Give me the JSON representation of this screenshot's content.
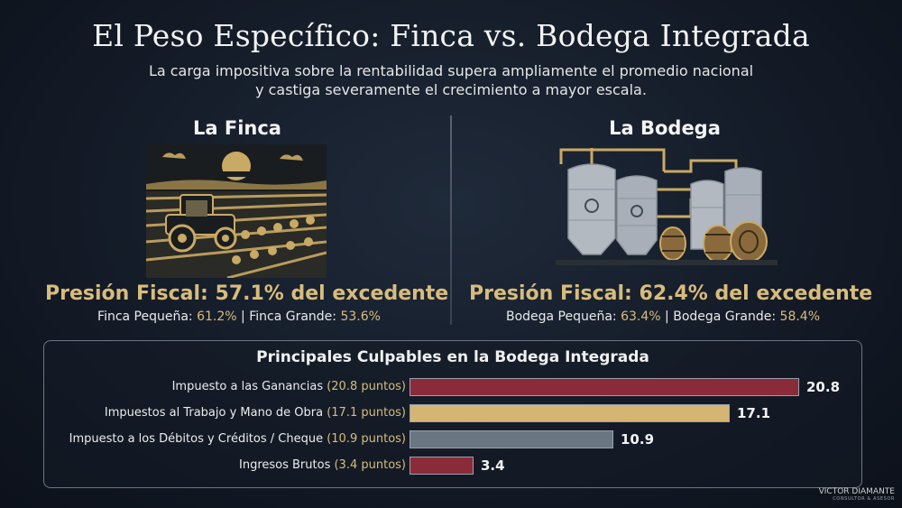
{
  "header": {
    "title": "El Peso Específico: Finca vs. Bodega Integrada",
    "subtitle_line1": "La carga impositiva sobre la rentabilidad supera ampliamente el promedio nacional",
    "subtitle_line2": "y castiga severamente el crecimiento a mayor escala."
  },
  "finca": {
    "heading": "La Finca",
    "pressure": "Presión Fiscal: 57.1% del excedente",
    "small_label": "Finca Pequeña: ",
    "small_value": "61.2%",
    "separator": " | ",
    "large_label": "Finca Grande: ",
    "large_value": "53.6%",
    "illustration_icon": "tractor-vineyard-icon"
  },
  "bodega": {
    "heading": "La Bodega",
    "pressure": "Presión Fiscal: 62.4% del excedente",
    "small_label": "Bodega Pequeña: ",
    "small_value": "63.4%",
    "separator": " | ",
    "large_label": "Bodega Grande: ",
    "large_value": "58.4%",
    "illustration_icon": "winery-tanks-barrels-icon"
  },
  "culprits": {
    "title": "Principales Culpables en la Bodega Integrada",
    "items": [
      {
        "label": "Impuesto a las Ganancias ",
        "detail": "(20.8 puntos)",
        "value": 20.8,
        "value_label": "20.8",
        "color": "#8a2b3a"
      },
      {
        "label": "Impuestos al Trabajo y Mano de Obra ",
        "detail": "(17.1 puntos)",
        "value": 17.1,
        "value_label": "17.1",
        "color": "#d4b574"
      },
      {
        "label": "Impuesto a los Débitos y Créditos / Cheque ",
        "detail": "(10.9 puntos)",
        "value": 10.9,
        "value_label": "10.9",
        "color": "#6b7683"
      },
      {
        "label": "Ingresos Brutos ",
        "detail": "(3.4 puntos)",
        "value": 3.4,
        "value_label": "3.4",
        "color": "#8a2b3a"
      }
    ]
  },
  "logo": {
    "name": "VICTOR DIAMANTE",
    "tagline": "CONSULTOR & ASESOR"
  },
  "colors": {
    "gold": "#d8bc7c",
    "background": "#131a26"
  }
}
